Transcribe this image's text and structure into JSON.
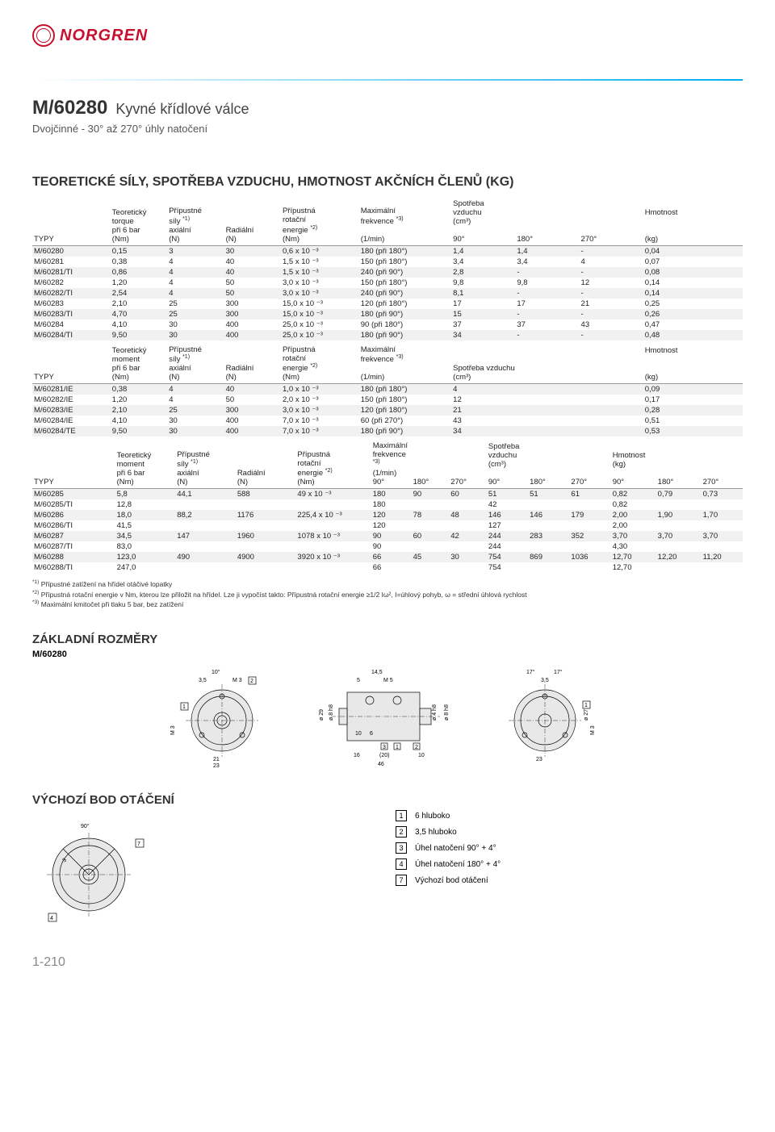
{
  "brand": "NORGREN",
  "brand_color": "#c8102e",
  "accent_color": "#00aeef",
  "product": {
    "code": "M/60280",
    "name": "Kyvné křídlové válce",
    "subtitle": "Dvojčinné - 30° až 270° úhly natočení"
  },
  "section_heading": "TEORETICKÉ SÍLY, SPOTŘEBA VZDUCHU, HMOTNOST AKČNÍCH ČLENŮ (KG)",
  "headers": {
    "typy": "TYPY",
    "torque": "Teoretický torque při 6 bar (Nm)",
    "moment": "Teoretický moment při 6 bar (Nm)",
    "axial": "Přípustné síly *1) axiální (N)",
    "radial": "Radiální (N)",
    "energy": "Přípustná rotační energie *2) (Nm)",
    "freq": "Maximální frekvence *3) (1/min)",
    "air": "Spotřeba vzduchu (cm³)",
    "mass": "Hmotnost (kg)",
    "c90": "90°",
    "c180": "180°",
    "c270": "270°"
  },
  "tbl1_header": {
    "c1": [
      "Teoretický",
      "torque",
      "při 6 bar",
      "(Nm)"
    ],
    "c2": [
      "Přípustné",
      "síly *1)",
      "axiální",
      "(N)"
    ],
    "c3": [
      "",
      "",
      "Radiální",
      "(N)"
    ],
    "c4": [
      "Přípustná",
      "rotační",
      "energie *2)",
      "(Nm)"
    ],
    "c5": [
      "Maximální",
      "frekvence *3)",
      "",
      "(1/min)"
    ],
    "c6": [
      "Spotřeba vzduchu",
      "(cm³)"
    ],
    "c7": "Hmotnost",
    "typy": "TYPY"
  },
  "tbl1": [
    [
      "M/60280",
      "0,15",
      "3",
      "30",
      "0,6 x 10 ⁻³",
      "180 (při 180°)",
      "1,4",
      "1,4",
      "-",
      "0,04"
    ],
    [
      "M/60281",
      "0,38",
      "4",
      "40",
      "1,5 x 10 ⁻³",
      "150 (při 180°)",
      "3,4",
      "3,4",
      "4",
      "0,07"
    ],
    [
      "M/60281/TI",
      "0,86",
      "4",
      "40",
      "1,5 x 10 ⁻³",
      "240 (při 90°)",
      "2,8",
      "-",
      "-",
      "0,08"
    ],
    [
      "M/60282",
      "1,20",
      "4",
      "50",
      "3,0 x 10 ⁻³",
      "150 (při 180°)",
      "9,8",
      "9,8",
      "12",
      "0,14"
    ],
    [
      "M/60282/TI",
      "2,54",
      "4",
      "50",
      "3,0 x 10 ⁻³",
      "240 (při 90°)",
      "8,1",
      "-",
      "-",
      "0,14"
    ],
    [
      "M/60283",
      "2,10",
      "25",
      "300",
      "15,0 x 10 ⁻³",
      "120 (při 180°)",
      "17",
      "17",
      "21",
      "0,25"
    ],
    [
      "M/60283/TI",
      "4,70",
      "25",
      "300",
      "15,0 x 10 ⁻³",
      "180 (při 90°)",
      "15",
      "-",
      "-",
      "0,26"
    ],
    [
      "M/60284",
      "4,10",
      "30",
      "400",
      "25,0 x 10 ⁻³",
      "90 (při 180°)",
      "37",
      "37",
      "43",
      "0,47"
    ],
    [
      "M/60284/TI",
      "9,50",
      "30",
      "400",
      "25,0 x 10 ⁻³",
      "180 (při 90°)",
      "34",
      "-",
      "-",
      "0,48"
    ]
  ],
  "tbl2_header": {
    "c1": [
      "Teoretický",
      "moment",
      "při 6 bar",
      "(Nm)"
    ],
    "c2": [
      "Přípustné",
      "síly *1)",
      "axiální",
      "(N)"
    ],
    "c3": [
      "",
      "",
      "Radiální",
      "(N)"
    ],
    "c4": [
      "Přípustná",
      "rotační",
      "energie *2)",
      "(Nm)"
    ],
    "c5": [
      "Maximální",
      "frekvence *3)",
      "",
      "(1/min)"
    ],
    "c6": [
      "Spotřeba vzduchu",
      "(cm³)"
    ],
    "c7": "Hmotnost",
    "typy": "TYPY"
  },
  "tbl2": [
    [
      "M/60281/IE",
      "0,38",
      "4",
      "40",
      "1,0 x 10 ⁻³",
      "180 (při 180°)",
      "4",
      "0,09"
    ],
    [
      "M/60282/IE",
      "1,20",
      "4",
      "50",
      "2,0 x 10 ⁻³",
      "150 (při 180°)",
      "12",
      "0,17"
    ],
    [
      "M/60283/IE",
      "2,10",
      "25",
      "300",
      "3,0 x 10 ⁻³",
      "120 (při 180°)",
      "21",
      "0,28"
    ],
    [
      "M/60284/IE",
      "4,10",
      "30",
      "400",
      "7,0 x 10 ⁻³",
      "60 (při 270°)",
      "43",
      "0,51"
    ],
    [
      "M/60284/TE",
      "9,50",
      "30",
      "400",
      "7,0 x 10 ⁻³",
      "180 (při 90°)",
      "34",
      "0,53"
    ]
  ],
  "tbl3_header": {
    "c1": [
      "Teoretický",
      "moment",
      "při 6 bar",
      "(Nm)"
    ],
    "c2": [
      "Přípustné",
      "síly *1)",
      "axiální",
      "(N)"
    ],
    "c3": [
      "",
      "",
      "Radiální",
      "(N)"
    ],
    "c4": [
      "Přípustná",
      "rotační",
      "energie *2)",
      "(Nm)"
    ],
    "c5": [
      "Maximální",
      "frekvence *3)",
      "(1/min)"
    ],
    "c6": [
      "Spotřeba vzduchu",
      "(cm³)"
    ],
    "c7": [
      "Hmotnost",
      "(kg)"
    ],
    "typy": "TYPY"
  },
  "tbl3": [
    [
      "M/60285",
      "5,8",
      "44,1",
      "588",
      "49 x 10 ⁻³",
      "180",
      "90",
      "60",
      "51",
      "51",
      "61",
      "0,82",
      "0,79",
      "0,73"
    ],
    [
      "M/60285/TI",
      "12,8",
      "",
      "",
      "",
      "180",
      "",
      "",
      "42",
      "",
      "",
      "0,82",
      "",
      ""
    ],
    [
      "M/60286",
      "18,0",
      "88,2",
      "1176",
      "225,4 x 10 ⁻³",
      "120",
      "78",
      "48",
      "146",
      "146",
      "179",
      "2,00",
      "1,90",
      "1,70"
    ],
    [
      "M/60286/TI",
      "41,5",
      "",
      "",
      "",
      "120",
      "",
      "",
      "127",
      "",
      "",
      "2,00",
      "",
      ""
    ],
    [
      "M/60287",
      "34,5",
      "147",
      "1960",
      "1078 x 10 ⁻³",
      "90",
      "60",
      "42",
      "244",
      "283",
      "352",
      "3,70",
      "3,70",
      "3,70"
    ],
    [
      "M/60287/TI",
      "83,0",
      "",
      "",
      "",
      "90",
      "",
      "",
      "244",
      "",
      "",
      "4,30",
      "",
      ""
    ],
    [
      "M/60288",
      "123,0",
      "490",
      "4900",
      "3920 x 10 ⁻³",
      "66",
      "45",
      "30",
      "754",
      "869",
      "1036",
      "12,70",
      "12,20",
      "11,20"
    ],
    [
      "M/60288/TI",
      "247,0",
      "",
      "",
      "",
      "66",
      "",
      "",
      "754",
      "",
      "",
      "12,70",
      "",
      ""
    ]
  ],
  "footnotes": [
    "*1) Přípustné zatížení na hřídel otáčivé lopatky",
    "*2) Přípustná rotační energie v Nm, kterou lze přiložit na hřídel. Lze ji vypočíst takto: Přípustná rotační energie ≥1/2 Iω², I=úhlový pohyb, ω = střední úhlová rychlost",
    "*3) Maximální kmitočet při tlaku 5 bar, bez zatížení"
  ],
  "dims_heading": "ZÁKLADNÍ ROZMĚRY",
  "dims_code": "M/60280",
  "rot_heading": "VÝCHOZÍ BOD OTÁČENÍ",
  "legend": [
    {
      "n": "1",
      "t": "6 hluboko"
    },
    {
      "n": "2",
      "t": "3,5 hluboko"
    },
    {
      "n": "3",
      "t": "Úhel natočení 90° + 4°"
    },
    {
      "n": "4",
      "t": "Úhel natočení 180° + 4°"
    },
    {
      "n": "7",
      "t": "Výchozí bod otáčení"
    }
  ],
  "dwg_labels": {
    "deg10": "10°",
    "w35": "3,5",
    "m3": "M 3",
    "b2": "2",
    "d145": "14,5",
    "w5": "5",
    "m5": "M 5",
    "d29": "ø 29",
    "d8": "ø 8 h8",
    "d4": "ø 4 h8",
    "d27": "ø 27",
    "w10": "10",
    "w6": "6",
    "w3": "3",
    "w1": "1",
    "w2": "2",
    "w21": "21",
    "w23": "23",
    "w16": "16",
    "w20": "(20)",
    "w46": "46",
    "deg17": "17°",
    "b1": "1",
    "b7": "7",
    "b4": "4",
    "m31": "M 3",
    "deg90": "90°"
  },
  "page": "1-210",
  "colwidths1": [
    "11%",
    "8%",
    "8%",
    "8%",
    "11%",
    "13%",
    "9%",
    "9%",
    "9%",
    "14%"
  ],
  "colwidths2": [
    "11%",
    "8%",
    "8%",
    "8%",
    "11%",
    "13%",
    "27%",
    "14%"
  ],
  "colwidths3": [
    "11%",
    "8%",
    "8%",
    "8%",
    "10%",
    "5%",
    "5%",
    "5%",
    "5.5%",
    "5.5%",
    "5.5%",
    "6%",
    "6%",
    "5.5%"
  ]
}
